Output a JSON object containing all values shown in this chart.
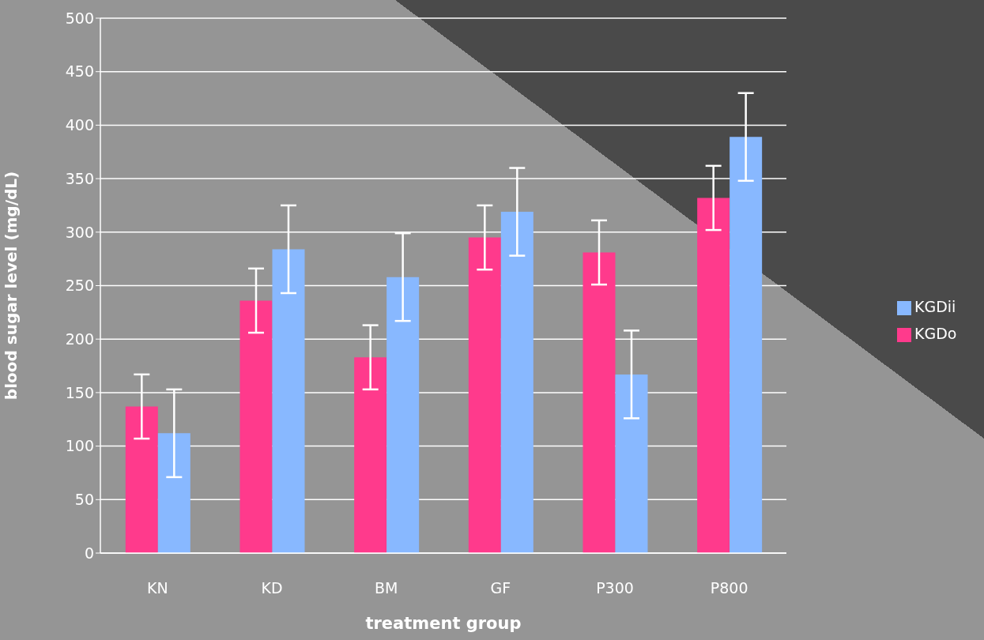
{
  "chart_data": {
    "type": "bar",
    "xlabel": "treatment group",
    "ylabel": "blood sugar level (mg/dL)",
    "categories": [
      "KN",
      "KD",
      "BM",
      "GF",
      "P300",
      "P800"
    ],
    "series": [
      {
        "name": "KGDo",
        "color": "#ff3a8c",
        "values": [
          137,
          236,
          183,
          295,
          281,
          332
        ],
        "errors": [
          30,
          30,
          30,
          30,
          30,
          30
        ]
      },
      {
        "name": "KGDii",
        "color": "#88b8ff",
        "values": [
          112,
          284,
          258,
          319,
          167,
          389
        ],
        "errors": [
          41,
          41,
          41,
          41,
          41,
          41
        ]
      }
    ],
    "ylim": [
      0,
      500
    ],
    "yticks": [
      0,
      50,
      100,
      150,
      200,
      250,
      300,
      350,
      400,
      450,
      500
    ],
    "grid": "y",
    "legend": "right"
  }
}
